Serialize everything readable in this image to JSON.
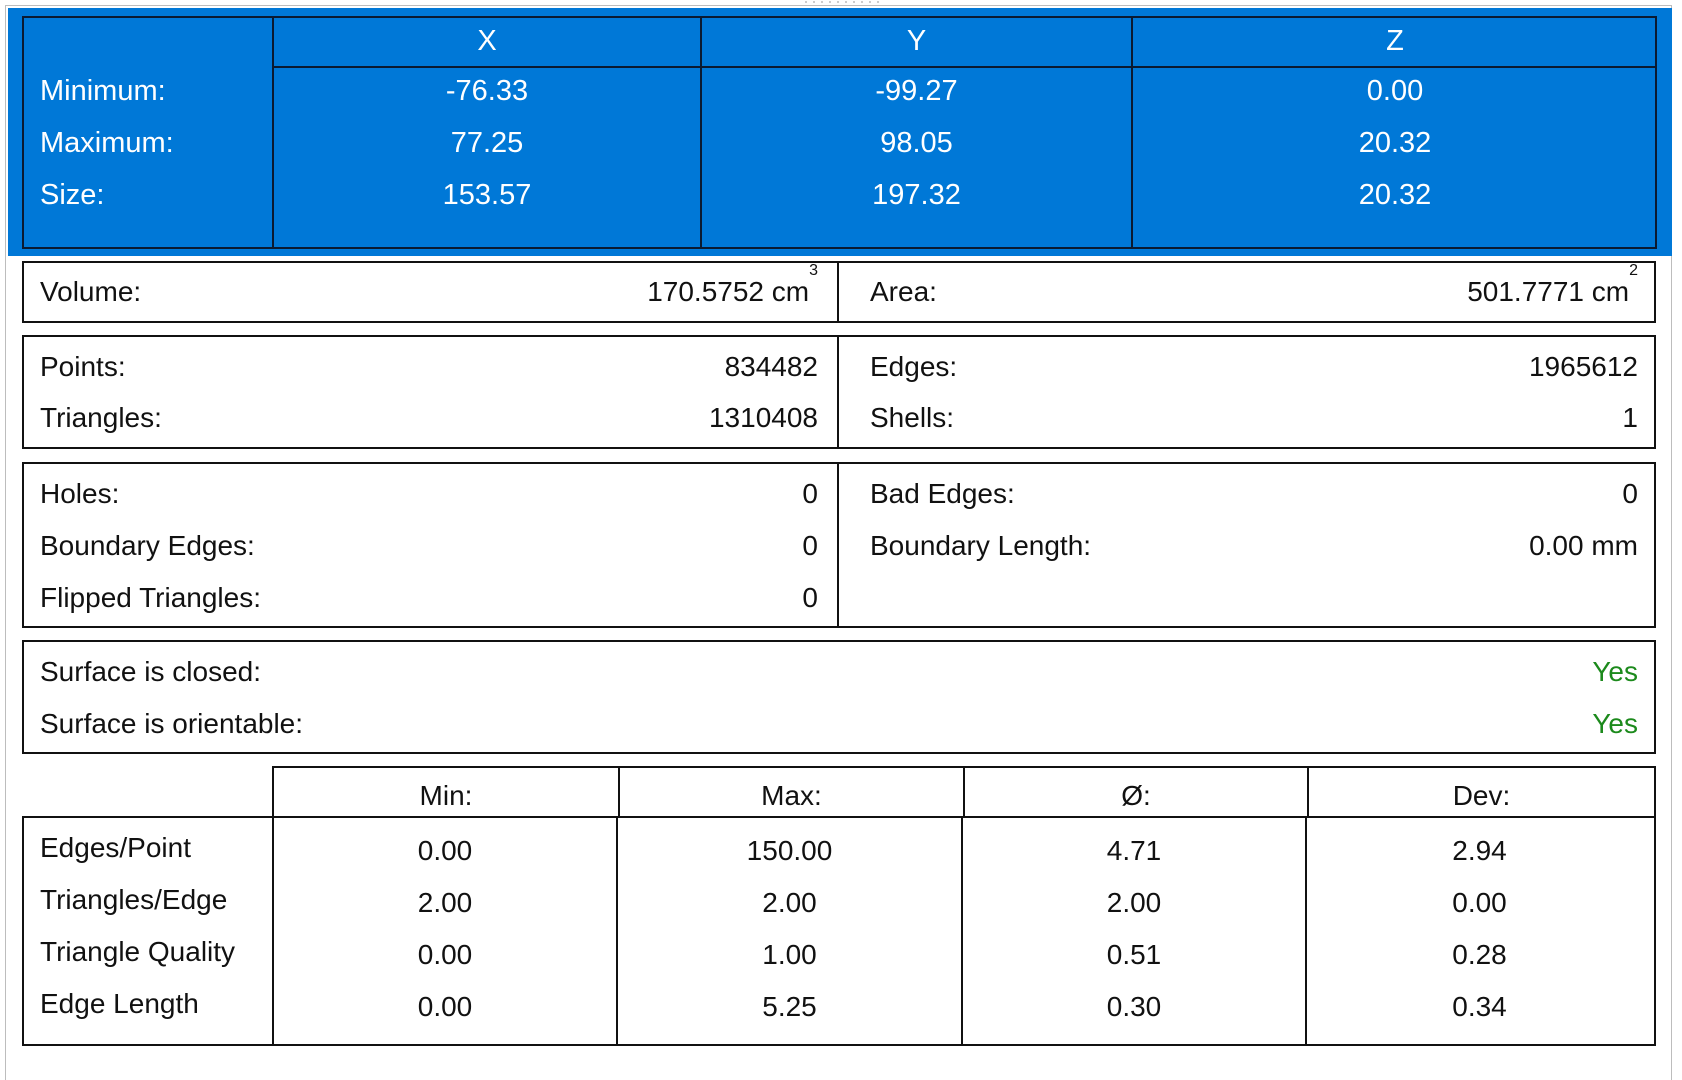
{
  "bounding_box": {
    "headers": [
      "X",
      "Y",
      "Z"
    ],
    "rows": [
      {
        "label": "Minimum:",
        "x": "-76.33",
        "y": "-99.27",
        "z": "0.00"
      },
      {
        "label": "Maximum:",
        "x": "77.25",
        "y": "98.05",
        "z": "20.32"
      },
      {
        "label": "Size:",
        "x": "153.57",
        "y": "197.32",
        "z": "20.32"
      }
    ]
  },
  "measures": {
    "volume_label": "Volume:",
    "volume_value": "170.5752 cm",
    "volume_unit_sup": "3",
    "area_label": "Area:",
    "area_value": "501.7771 cm",
    "area_unit_sup": "2"
  },
  "counts": {
    "points_label": "Points:",
    "points_value": "834482",
    "triangles_label": "Triangles:",
    "triangles_value": "1310408",
    "edges_label": "Edges:",
    "edges_value": "1965612",
    "shells_label": "Shells:",
    "shells_value": "1"
  },
  "defects": {
    "holes_label": "Holes:",
    "holes_value": "0",
    "boundary_edges_label": "Boundary Edges:",
    "boundary_edges_value": "0",
    "flipped_label": "Flipped Triangles:",
    "flipped_value": "0",
    "bad_edges_label": "Bad Edges:",
    "bad_edges_value": "0",
    "boundary_length_label": "Boundary Length:",
    "boundary_length_value": "0.00 mm"
  },
  "surface": {
    "closed_label": "Surface is closed:",
    "closed_value": "Yes",
    "orientable_label": "Surface is orientable:",
    "orientable_value": "Yes",
    "status_color": "#1c8a1c"
  },
  "statistics": {
    "headers": [
      "Min:",
      "Max:",
      "Ø:",
      "Dev:"
    ],
    "rows": [
      {
        "label": "Edges/Point",
        "min": "0.00",
        "max": "150.00",
        "avg": "4.71",
        "dev": "2.94"
      },
      {
        "label": "Triangles/Edge",
        "min": "2.00",
        "max": "2.00",
        "avg": "2.00",
        "dev": "0.00"
      },
      {
        "label": "Triangle Quality",
        "min": "0.00",
        "max": "1.00",
        "avg": "0.51",
        "dev": "0.28"
      },
      {
        "label": "Edge Length",
        "min": "0.00",
        "max": "5.25",
        "avg": "0.30",
        "dev": "0.34"
      }
    ]
  },
  "colors": {
    "selection": "#0078d7",
    "text": "#111111"
  }
}
